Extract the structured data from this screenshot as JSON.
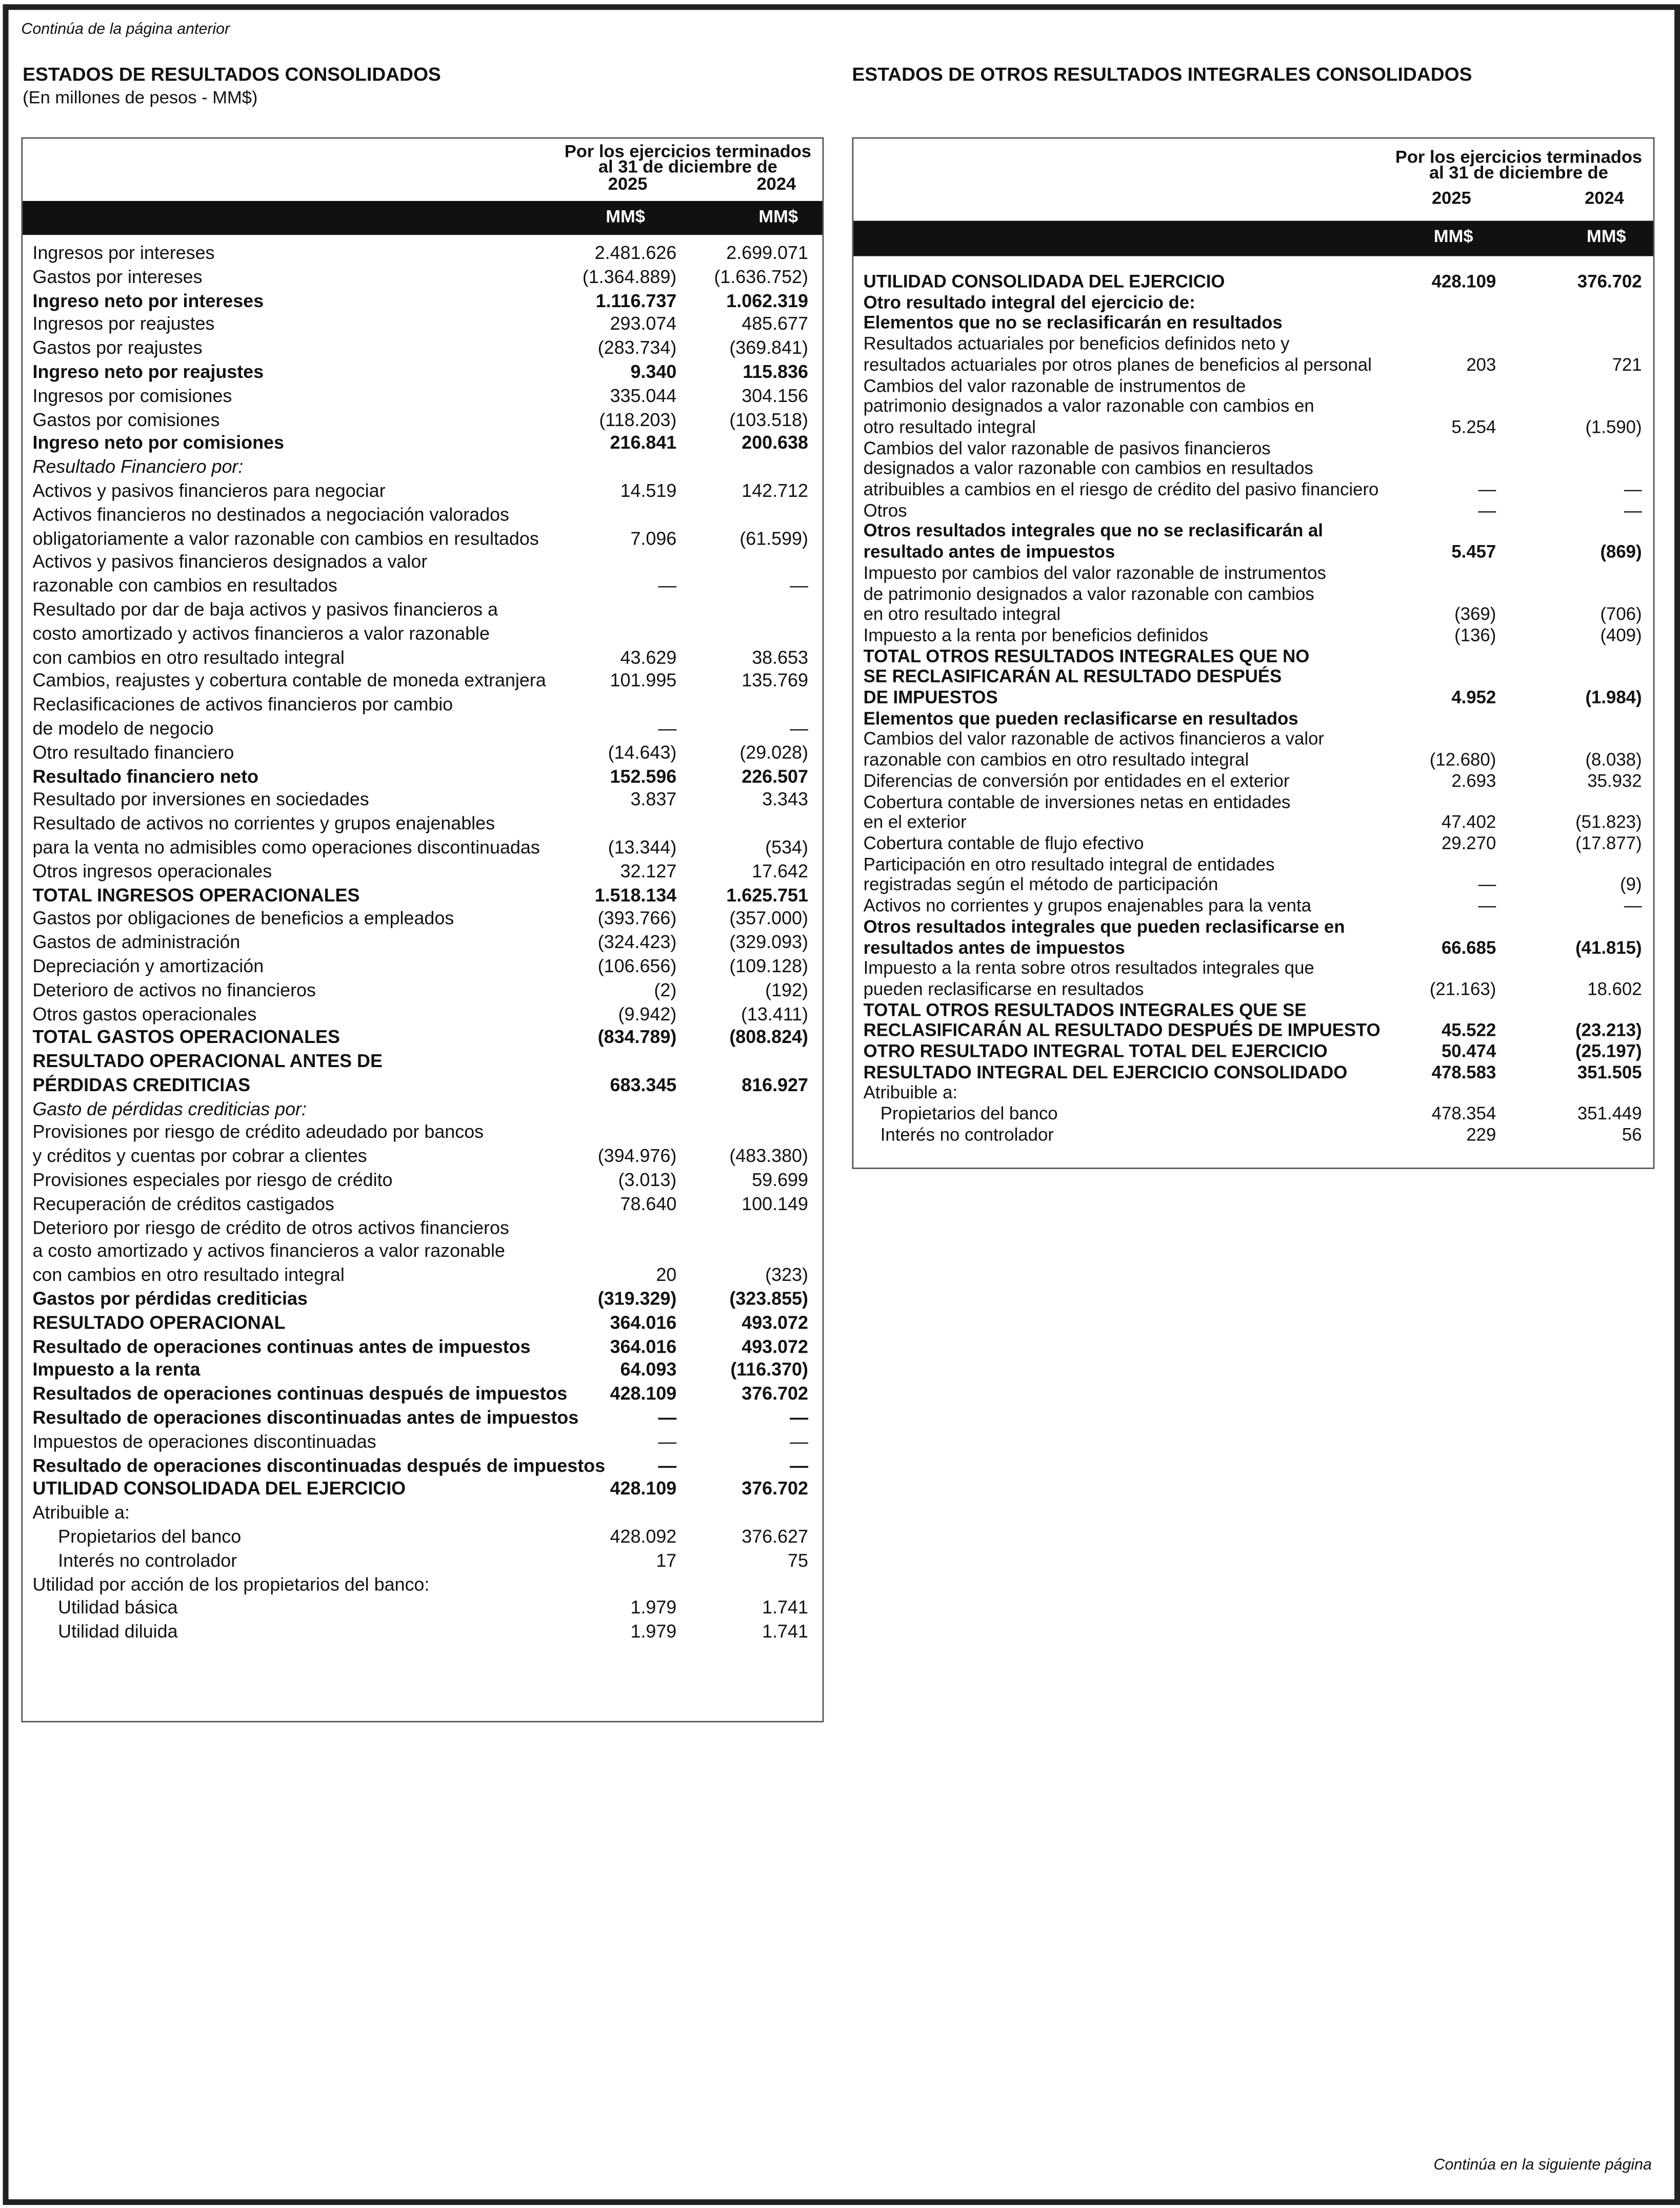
{
  "header": {
    "prev_note": "Continúa de la página anterior",
    "next_note": "Continúa en la siguiente página"
  },
  "left": {
    "title": "ESTADOS DE RESULTADOS CONSOLIDADOS",
    "subtitle": "(En millones de pesos - MM$)",
    "col_header": "Por los ejercicios terminados al 31 de diciembre de",
    "years": [
      "2025",
      "2024"
    ],
    "units": [
      "MM$",
      "MM$"
    ],
    "rows": [
      {
        "label": [
          "Ingresos por intereses"
        ],
        "v": [
          "2.481.626",
          "2.699.071"
        ]
      },
      {
        "label": [
          "Gastos por intereses"
        ],
        "v": [
          "(1.364.889)",
          "(1.636.752)"
        ]
      },
      {
        "label": [
          "Ingreso neto por intereses"
        ],
        "v": [
          "1.116.737",
          "1.062.319"
        ],
        "style": "b"
      },
      {
        "label": [
          "Ingresos por reajustes"
        ],
        "v": [
          "293.074",
          "485.677"
        ]
      },
      {
        "label": [
          "Gastos por reajustes"
        ],
        "v": [
          "(283.734)",
          "(369.841)"
        ]
      },
      {
        "label": [
          "Ingreso neto por reajustes"
        ],
        "v": [
          "9.340",
          "115.836"
        ],
        "style": "b"
      },
      {
        "label": [
          "Ingresos por comisiones"
        ],
        "v": [
          "335.044",
          "304.156"
        ]
      },
      {
        "label": [
          "Gastos por comisiones"
        ],
        "v": [
          "(118.203)",
          "(103.518)"
        ]
      },
      {
        "label": [
          "Ingreso neto por comisiones"
        ],
        "v": [
          "216.841",
          "200.638"
        ],
        "style": "b"
      },
      {
        "label": [
          "Resultado Financiero por:"
        ],
        "v": [
          "",
          ""
        ],
        "style": "i"
      },
      {
        "label": [
          "Activos y pasivos financieros para negociar"
        ],
        "v": [
          "14.519",
          "142.712"
        ]
      },
      {
        "label": [
          "Activos financieros no destinados a negociación valorados",
          "obligatoriamente a valor razonable con cambios en resultados"
        ],
        "v": [
          "7.096",
          "(61.599)"
        ]
      },
      {
        "label": [
          "Activos y pasivos financieros designados a valor",
          "razonable con cambios en resultados"
        ],
        "v": [
          "—",
          "—"
        ]
      },
      {
        "label": [
          "Resultado por dar de baja activos y pasivos financieros a",
          "costo amortizado y activos financieros a valor razonable",
          "con cambios en otro resultado integral"
        ],
        "v": [
          "43.629",
          "38.653"
        ]
      },
      {
        "label": [
          "Cambios, reajustes y cobertura contable de moneda extranjera"
        ],
        "v": [
          "101.995",
          "135.769"
        ]
      },
      {
        "label": [
          "Reclasificaciones de activos financieros por cambio",
          "de modelo de negocio"
        ],
        "v": [
          "—",
          "—"
        ]
      },
      {
        "label": [
          "Otro resultado financiero"
        ],
        "v": [
          "(14.643)",
          "(29.028)"
        ]
      },
      {
        "label": [
          "Resultado financiero neto"
        ],
        "v": [
          "152.596",
          "226.507"
        ],
        "style": "b"
      },
      {
        "label": [
          "Resultado por inversiones en sociedades"
        ],
        "v": [
          "3.837",
          "3.343"
        ]
      },
      {
        "label": [
          "Resultado de activos no corrientes y grupos enajenables",
          "para la venta no admisibles como operaciones discontinuadas"
        ],
        "v": [
          "(13.344)",
          "(534)"
        ]
      },
      {
        "label": [
          "Otros ingresos operacionales"
        ],
        "v": [
          "32.127",
          "17.642"
        ]
      },
      {
        "label": [
          "TOTAL INGRESOS OPERACIONALES"
        ],
        "v": [
          "1.518.134",
          "1.625.751"
        ],
        "style": "b"
      },
      {
        "label": [
          "Gastos por obligaciones de beneficios a empleados"
        ],
        "v": [
          "(393.766)",
          "(357.000)"
        ]
      },
      {
        "label": [
          "Gastos de administración"
        ],
        "v": [
          "(324.423)",
          "(329.093)"
        ]
      },
      {
        "label": [
          "Depreciación y amortización"
        ],
        "v": [
          "(106.656)",
          "(109.128)"
        ]
      },
      {
        "label": [
          "Deterioro de activos no financieros"
        ],
        "v": [
          "(2)",
          "(192)"
        ]
      },
      {
        "label": [
          "Otros gastos operacionales"
        ],
        "v": [
          "(9.942)",
          "(13.411)"
        ]
      },
      {
        "label": [
          "TOTAL GASTOS OPERACIONALES"
        ],
        "v": [
          "(834.789)",
          "(808.824)"
        ],
        "style": "b"
      },
      {
        "label": [
          "RESULTADO OPERACIONAL ANTES DE",
          "PÉRDIDAS CREDITICIAS"
        ],
        "v": [
          "683.345",
          "816.927"
        ],
        "style": "b"
      },
      {
        "label": [
          "Gasto de pérdidas crediticias por:"
        ],
        "v": [
          "",
          ""
        ],
        "style": "i"
      },
      {
        "label": [
          "Provisiones por riesgo de crédito adeudado por bancos",
          "y créditos y cuentas por cobrar a clientes"
        ],
        "v": [
          "(394.976)",
          "(483.380)"
        ]
      },
      {
        "label": [
          "Provisiones especiales por riesgo de crédito"
        ],
        "v": [
          "(3.013)",
          "59.699"
        ]
      },
      {
        "label": [
          "Recuperación de créditos castigados"
        ],
        "v": [
          "78.640",
          "100.149"
        ]
      },
      {
        "label": [
          "Deterioro por riesgo de crédito de otros activos financieros",
          "a costo amortizado y activos financieros a valor razonable",
          "con cambios en otro resultado integral"
        ],
        "v": [
          "20",
          "(323)"
        ]
      },
      {
        "label": [
          "Gastos por pérdidas crediticias"
        ],
        "v": [
          "(319.329)",
          "(323.855)"
        ],
        "style": "b"
      },
      {
        "label": [
          "RESULTADO OPERACIONAL"
        ],
        "v": [
          "364.016",
          "493.072"
        ],
        "style": "b"
      },
      {
        "label": [
          "Resultado de operaciones continuas antes de impuestos"
        ],
        "v": [
          "364.016",
          "493.072"
        ],
        "style": "b"
      },
      {
        "label": [
          "Impuesto a la renta"
        ],
        "v": [
          "64.093",
          "(116.370)"
        ],
        "style": "b"
      },
      {
        "label": [
          "Resultados de operaciones continuas después de impuestos"
        ],
        "v": [
          "428.109",
          "376.702"
        ],
        "style": "b"
      },
      {
        "label": [
          "Resultado de operaciones discontinuadas antes de impuestos"
        ],
        "v": [
          "—",
          "—"
        ],
        "style": "b"
      },
      {
        "label": [
          "Impuestos de operaciones discontinuadas"
        ],
        "v": [
          "—",
          "—"
        ]
      },
      {
        "label": [
          "Resultado de operaciones discontinuadas después de impuestos"
        ],
        "v": [
          "—",
          "—"
        ],
        "style": "b"
      },
      {
        "label": [
          "UTILIDAD CONSOLIDADA DEL EJERCICIO"
        ],
        "v": [
          "428.109",
          "376.702"
        ],
        "style": "b"
      },
      {
        "label": [
          "Atribuible a:"
        ],
        "v": [
          "",
          ""
        ]
      },
      {
        "label": [
          "Propietarios del banco"
        ],
        "v": [
          "428.092",
          "376.627"
        ],
        "style": "ind"
      },
      {
        "label": [
          "Interés no controlador"
        ],
        "v": [
          "17",
          "75"
        ],
        "style": "ind"
      },
      {
        "label": [
          "Utilidad por acción de los propietarios del banco:"
        ],
        "v": [
          "",
          ""
        ]
      },
      {
        "label": [
          "Utilidad básica"
        ],
        "v": [
          "1.979",
          "1.741"
        ],
        "style": "ind"
      },
      {
        "label": [
          "Utilidad diluida"
        ],
        "v": [
          "1.979",
          "1.741"
        ],
        "style": "ind"
      }
    ]
  },
  "right": {
    "title": "ESTADOS DE OTROS RESULTADOS INTEGRALES CONSOLIDADOS",
    "col_header": "Por los ejercicios terminados al 31 de diciembre de",
    "years": [
      "2025",
      "2024"
    ],
    "units": [
      "MM$",
      "MM$"
    ],
    "rows": [
      {
        "label": [
          "UTILIDAD CONSOLIDADA DEL EJERCICIO"
        ],
        "v": [
          "428.109",
          "376.702"
        ],
        "style": "b"
      },
      {
        "label": [
          "Otro resultado integral del ejercicio de:"
        ],
        "v": [
          "",
          ""
        ],
        "style": "b"
      },
      {
        "label": [
          "Elementos que no se reclasificarán en resultados"
        ],
        "v": [
          "",
          ""
        ],
        "style": "b"
      },
      {
        "label": [
          "Resultados actuariales por beneficios definidos neto y",
          "resultados actuariales por otros planes de beneficios al personal"
        ],
        "v": [
          "203",
          "721"
        ]
      },
      {
        "label": [
          "Cambios del valor razonable de instrumentos de",
          "patrimonio designados a valor razonable con cambios en",
          "otro resultado integral"
        ],
        "v": [
          "5.254",
          "(1.590)"
        ]
      },
      {
        "label": [
          "Cambios del valor razonable de pasivos financieros",
          "designados a valor razonable con cambios en resultados",
          "atribuibles a cambios en el riesgo de crédito del pasivo financiero"
        ],
        "v": [
          "—",
          "—"
        ]
      },
      {
        "label": [
          "Otros"
        ],
        "v": [
          "—",
          "—"
        ]
      },
      {
        "label": [
          "Otros resultados integrales que no se reclasificarán al",
          "resultado antes de impuestos"
        ],
        "v": [
          "5.457",
          "(869)"
        ],
        "style": "b"
      },
      {
        "label": [
          "Impuesto por cambios del valor razonable de instrumentos",
          "de patrimonio designados a valor razonable con cambios",
          "en otro resultado integral"
        ],
        "v": [
          "(369)",
          "(706)"
        ]
      },
      {
        "label": [
          "Impuesto a la renta por beneficios definidos"
        ],
        "v": [
          "(136)",
          "(409)"
        ]
      },
      {
        "label": [
          "TOTAL OTROS RESULTADOS INTEGRALES QUE NO",
          "SE RECLASIFICARÁN AL RESULTADO DESPUÉS",
          "DE IMPUESTOS"
        ],
        "v": [
          "4.952",
          "(1.984)"
        ],
        "style": "b"
      },
      {
        "label": [
          "Elementos que pueden reclasificarse en resultados"
        ],
        "v": [
          "",
          ""
        ],
        "style": "b"
      },
      {
        "label": [
          "Cambios del valor razonable de activos financieros a valor",
          "razonable con cambios en otro resultado integral"
        ],
        "v": [
          "(12.680)",
          "(8.038)"
        ]
      },
      {
        "label": [
          "Diferencias de conversión por entidades en el exterior"
        ],
        "v": [
          "2.693",
          "35.932"
        ]
      },
      {
        "label": [
          "Cobertura contable de inversiones netas en entidades",
          "en el exterior"
        ],
        "v": [
          "47.402",
          "(51.823)"
        ]
      },
      {
        "label": [
          "Cobertura contable de flujo efectivo"
        ],
        "v": [
          "29.270",
          "(17.877)"
        ]
      },
      {
        "label": [
          "Participación en otro resultado integral de entidades",
          "registradas según el método de participación"
        ],
        "v": [
          "—",
          "(9)"
        ]
      },
      {
        "label": [
          "Activos no corrientes y grupos enajenables para la venta"
        ],
        "v": [
          "—",
          "—"
        ]
      },
      {
        "label": [
          "Otros resultados integrales que pueden reclasificarse en",
          "resultados antes de impuestos"
        ],
        "v": [
          "66.685",
          "(41.815)"
        ],
        "style": "b"
      },
      {
        "label": [
          "Impuesto a la renta sobre otros resultados integrales que",
          "pueden reclasificarse en resultados"
        ],
        "v": [
          "(21.163)",
          "18.602"
        ]
      },
      {
        "label": [
          "TOTAL OTROS RESULTADOS INTEGRALES QUE SE",
          "RECLASIFICARÁN AL RESULTADO DESPUÉS DE IMPUESTO"
        ],
        "v": [
          "45.522",
          "(23.213)"
        ],
        "style": "b"
      },
      {
        "label": [
          "OTRO RESULTADO INTEGRAL TOTAL DEL EJERCICIO"
        ],
        "v": [
          "50.474",
          "(25.197)"
        ],
        "style": "b"
      },
      {
        "label": [
          "RESULTADO INTEGRAL DEL EJERCICIO CONSOLIDADO"
        ],
        "v": [
          "478.583",
          "351.505"
        ],
        "style": "b"
      },
      {
        "label": [
          "Atribuible a:"
        ],
        "v": [
          "",
          ""
        ]
      },
      {
        "label": [
          "Propietarios del banco"
        ],
        "v": [
          "478.354",
          "351.449"
        ],
        "style": "ind"
      },
      {
        "label": [
          "Interés no controlador"
        ],
        "v": [
          "229",
          "56"
        ],
        "style": "ind"
      }
    ]
  }
}
